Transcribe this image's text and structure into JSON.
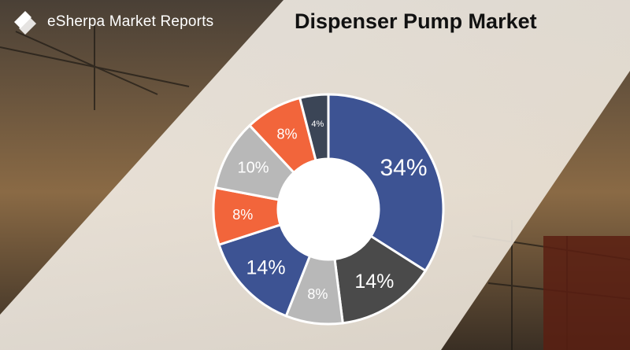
{
  "header": {
    "brand": "eSherpa Market Reports",
    "title": "Dispenser Pump Market"
  },
  "colors": {
    "navy": "#3d5393",
    "dark_gray": "#4a4a4a",
    "light_gray": "#b8b8b8",
    "orange": "#f2653b",
    "charcoal": "#3b4556"
  },
  "chart_data": {
    "type": "pie",
    "style": "donut",
    "start": "top, clockwise",
    "labels": [
      "34%",
      "14%",
      "8%",
      "14%",
      "8%",
      "10%",
      "8%",
      "4%"
    ],
    "values": [
      34,
      14,
      8,
      14,
      8,
      10,
      8,
      4
    ],
    "colors": [
      "#3d5393",
      "#4a4a4a",
      "#b8b8b8",
      "#3d5393",
      "#f2653b",
      "#b8b8b8",
      "#f2653b",
      "#3b4556"
    ],
    "legend": "none"
  }
}
